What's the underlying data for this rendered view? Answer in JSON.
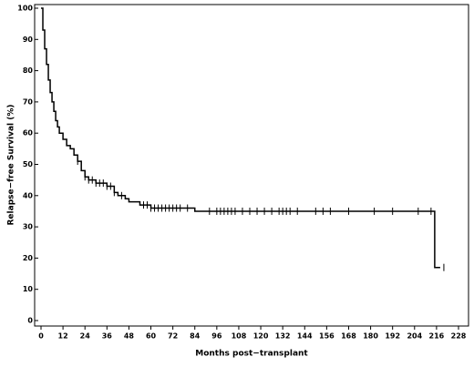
{
  "chart_data": {
    "type": "line",
    "step": true,
    "color": "#000000",
    "x_label": "Months post−transplant",
    "y_label": "Relapse−free Survival (%)",
    "x": [
      0,
      1,
      2,
      3,
      4,
      5,
      6,
      7,
      8,
      9,
      10,
      12,
      14,
      16,
      18,
      20,
      22,
      24,
      26,
      30,
      36,
      40,
      42,
      46,
      48,
      54,
      60,
      72,
      78,
      84,
      90,
      214,
      215,
      218
    ],
    "values": [
      100,
      93,
      87,
      82,
      77,
      73,
      70,
      67,
      64,
      62,
      60,
      58,
      56,
      55,
      53,
      51,
      48,
      46,
      45,
      44,
      43,
      41,
      40,
      39,
      38,
      37,
      36,
      36,
      36,
      35,
      35,
      35,
      17,
      17
    ],
    "censored": {
      "x": [
        20,
        24,
        26,
        28,
        30,
        32,
        34,
        36,
        38,
        40,
        44,
        56,
        58,
        60,
        62,
        64,
        66,
        68,
        70,
        72,
        74,
        76,
        80,
        92,
        96,
        98,
        100,
        102,
        104,
        106,
        110,
        114,
        118,
        122,
        126,
        130,
        132,
        134,
        136,
        140,
        150,
        154,
        158,
        168,
        182,
        192,
        206,
        213,
        220
      ],
      "values": [
        51,
        46,
        45,
        45,
        44,
        44,
        44,
        43,
        43,
        41,
        40,
        37,
        37,
        36,
        36,
        36,
        36,
        36,
        36,
        36,
        36,
        36,
        36,
        35,
        35,
        35,
        35,
        35,
        35,
        35,
        35,
        35,
        35,
        35,
        35,
        35,
        35,
        35,
        35,
        35,
        35,
        35,
        35,
        35,
        35,
        35,
        35,
        35,
        17
      ]
    },
    "xlim": [
      0,
      228
    ],
    "ylim": [
      0,
      100
    ],
    "xticks": [
      0,
      12,
      24,
      36,
      48,
      60,
      72,
      84,
      96,
      108,
      120,
      132,
      144,
      156,
      168,
      180,
      192,
      204,
      216,
      228
    ],
    "yticks": [
      0,
      10,
      20,
      30,
      40,
      50,
      60,
      70,
      80,
      90,
      100
    ]
  }
}
